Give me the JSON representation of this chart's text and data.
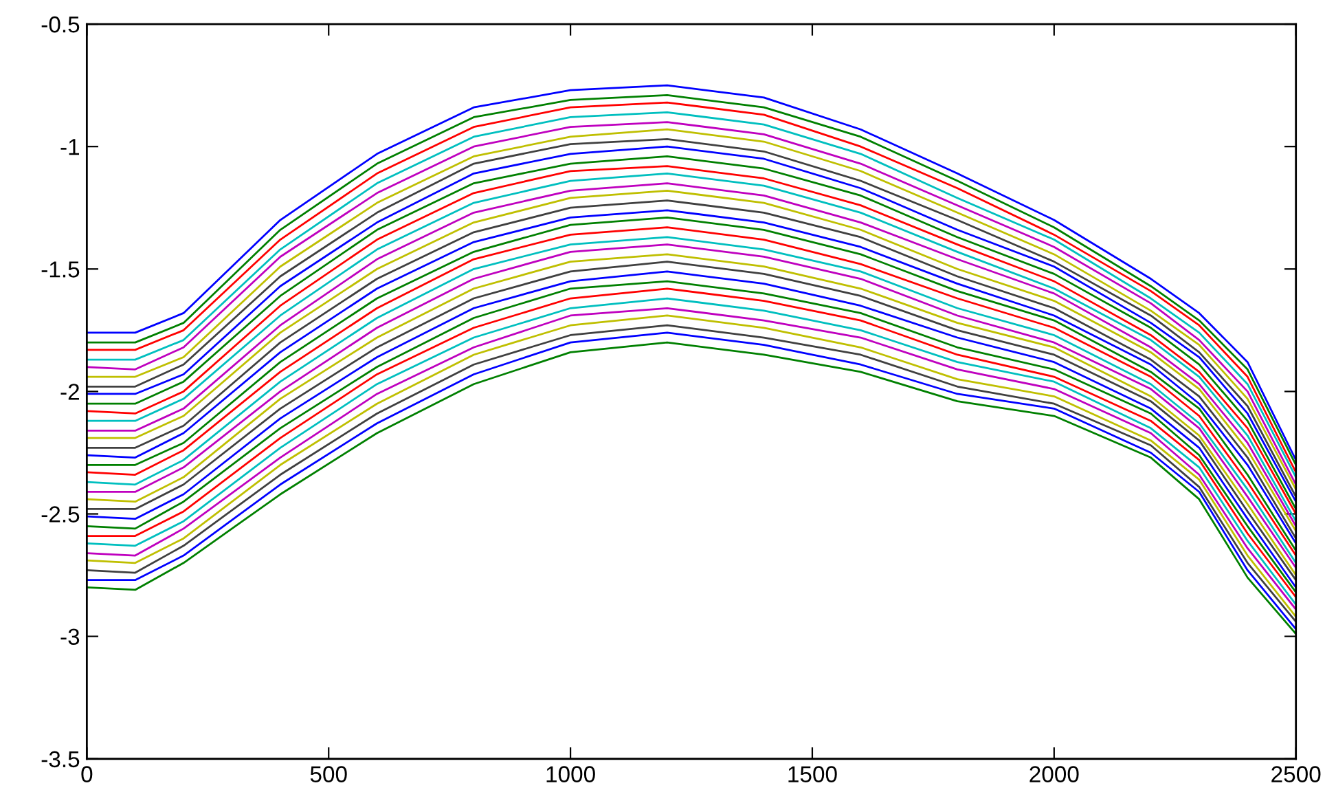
{
  "chart_data": {
    "type": "line",
    "x": [
      0,
      100,
      200,
      400,
      600,
      800,
      1000,
      1200,
      1400,
      1600,
      1800,
      2000,
      2200,
      2300,
      2400,
      2500
    ],
    "xlim": [
      0,
      2500
    ],
    "xticks": [
      0,
      500,
      1000,
      1500,
      2000,
      2500
    ],
    "ylim": [
      -3.5,
      -0.5
    ],
    "yticks": [
      -3.5,
      -3,
      -2.5,
      -2,
      -1.5,
      -1,
      -0.5
    ],
    "grid": false,
    "marker": "none",
    "line_style": "solid",
    "series": [
      {
        "color": "#0000ff",
        "values": [
          -1.76,
          -1.76,
          -1.68,
          -1.3,
          -1.03,
          -0.84,
          -0.77,
          -0.75,
          -0.8,
          -0.93,
          -1.11,
          -1.3,
          -1.54,
          -1.68,
          -1.88,
          -2.28
        ]
      },
      {
        "color": "#008000",
        "values": [
          -1.8,
          -1.8,
          -1.72,
          -1.34,
          -1.07,
          -0.88,
          -0.81,
          -0.79,
          -0.84,
          -0.96,
          -1.14,
          -1.33,
          -1.57,
          -1.71,
          -1.91,
          -2.3
        ]
      },
      {
        "color": "#ff0000",
        "values": [
          -1.83,
          -1.83,
          -1.75,
          -1.38,
          -1.11,
          -0.92,
          -0.84,
          -0.82,
          -0.87,
          -1.0,
          -1.17,
          -1.36,
          -1.59,
          -1.73,
          -1.94,
          -2.33
        ]
      },
      {
        "color": "#00bfbf",
        "values": [
          -1.87,
          -1.87,
          -1.79,
          -1.42,
          -1.15,
          -0.96,
          -0.88,
          -0.86,
          -0.91,
          -1.03,
          -1.21,
          -1.38,
          -1.62,
          -1.76,
          -1.97,
          -2.35
        ]
      },
      {
        "color": "#bf00bf",
        "values": [
          -1.9,
          -1.91,
          -1.82,
          -1.45,
          -1.19,
          -1.0,
          -0.92,
          -0.9,
          -0.95,
          -1.07,
          -1.24,
          -1.41,
          -1.64,
          -1.79,
          -2.0,
          -2.38
        ]
      },
      {
        "color": "#bfbf00",
        "values": [
          -1.94,
          -1.94,
          -1.86,
          -1.49,
          -1.23,
          -1.04,
          -0.96,
          -0.93,
          -0.98,
          -1.1,
          -1.27,
          -1.44,
          -1.67,
          -1.81,
          -2.03,
          -2.4
        ]
      },
      {
        "color": "#404040",
        "values": [
          -1.98,
          -1.98,
          -1.89,
          -1.53,
          -1.27,
          -1.07,
          -0.99,
          -0.97,
          -1.02,
          -1.14,
          -1.3,
          -1.47,
          -1.69,
          -1.84,
          -2.06,
          -2.43
        ]
      },
      {
        "color": "#0000ff",
        "values": [
          -2.01,
          -2.01,
          -1.93,
          -1.57,
          -1.31,
          -1.11,
          -1.03,
          -1.0,
          -1.05,
          -1.17,
          -1.34,
          -1.49,
          -1.72,
          -1.86,
          -2.09,
          -2.45
        ]
      },
      {
        "color": "#008000",
        "values": [
          -2.05,
          -2.05,
          -1.96,
          -1.61,
          -1.34,
          -1.15,
          -1.07,
          -1.04,
          -1.09,
          -1.2,
          -1.37,
          -1.52,
          -1.74,
          -1.89,
          -2.12,
          -2.48
        ]
      },
      {
        "color": "#ff0000",
        "values": [
          -2.08,
          -2.09,
          -2.0,
          -1.65,
          -1.38,
          -1.19,
          -1.1,
          -1.08,
          -1.13,
          -1.24,
          -1.4,
          -1.55,
          -1.77,
          -1.92,
          -2.15,
          -2.5
        ]
      },
      {
        "color": "#00bfbf",
        "values": [
          -2.12,
          -2.12,
          -2.03,
          -1.69,
          -1.42,
          -1.23,
          -1.14,
          -1.11,
          -1.16,
          -1.27,
          -1.43,
          -1.58,
          -1.79,
          -1.94,
          -2.18,
          -2.53
        ]
      },
      {
        "color": "#bf00bf",
        "values": [
          -2.16,
          -2.16,
          -2.07,
          -1.73,
          -1.46,
          -1.27,
          -1.18,
          -1.15,
          -1.2,
          -1.31,
          -1.46,
          -1.6,
          -1.82,
          -1.97,
          -2.21,
          -2.55
        ]
      },
      {
        "color": "#bfbf00",
        "values": [
          -2.19,
          -2.19,
          -2.1,
          -1.76,
          -1.5,
          -1.31,
          -1.21,
          -1.18,
          -1.23,
          -1.34,
          -1.5,
          -1.63,
          -1.84,
          -1.99,
          -2.24,
          -2.57
        ]
      },
      {
        "color": "#404040",
        "values": [
          -2.23,
          -2.23,
          -2.14,
          -1.8,
          -1.54,
          -1.35,
          -1.25,
          -1.22,
          -1.27,
          -1.37,
          -1.53,
          -1.66,
          -1.87,
          -2.02,
          -2.27,
          -2.6
        ]
      },
      {
        "color": "#0000ff",
        "values": [
          -2.26,
          -2.27,
          -2.17,
          -1.84,
          -1.58,
          -1.39,
          -1.29,
          -1.26,
          -1.31,
          -1.41,
          -1.56,
          -1.69,
          -1.89,
          -2.05,
          -2.3,
          -2.62
        ]
      },
      {
        "color": "#008000",
        "values": [
          -2.3,
          -2.3,
          -2.21,
          -1.88,
          -1.62,
          -1.43,
          -1.32,
          -1.29,
          -1.34,
          -1.44,
          -1.59,
          -1.71,
          -1.92,
          -2.07,
          -2.34,
          -2.65
        ]
      },
      {
        "color": "#ff0000",
        "values": [
          -2.33,
          -2.34,
          -2.24,
          -1.92,
          -1.66,
          -1.46,
          -1.36,
          -1.33,
          -1.38,
          -1.48,
          -1.62,
          -1.74,
          -1.94,
          -2.1,
          -2.37,
          -2.67
        ]
      },
      {
        "color": "#00bfbf",
        "values": [
          -2.37,
          -2.38,
          -2.28,
          -1.96,
          -1.7,
          -1.5,
          -1.4,
          -1.37,
          -1.42,
          -1.51,
          -1.66,
          -1.77,
          -1.97,
          -2.13,
          -2.4,
          -2.7
        ]
      },
      {
        "color": "#bf00bf",
        "values": [
          -2.41,
          -2.41,
          -2.31,
          -2.0,
          -1.74,
          -1.54,
          -1.43,
          -1.4,
          -1.45,
          -1.54,
          -1.69,
          -1.8,
          -1.99,
          -2.15,
          -2.43,
          -2.72
        ]
      },
      {
        "color": "#bfbf00",
        "values": [
          -2.44,
          -2.45,
          -2.35,
          -2.03,
          -1.78,
          -1.58,
          -1.47,
          -1.44,
          -1.49,
          -1.58,
          -1.72,
          -1.82,
          -2.02,
          -2.18,
          -2.46,
          -2.75
        ]
      },
      {
        "color": "#404040",
        "values": [
          -2.48,
          -2.48,
          -2.38,
          -2.07,
          -1.82,
          -1.62,
          -1.51,
          -1.47,
          -1.52,
          -1.61,
          -1.75,
          -1.85,
          -2.04,
          -2.2,
          -2.49,
          -2.77
        ]
      },
      {
        "color": "#0000ff",
        "values": [
          -2.51,
          -2.52,
          -2.42,
          -2.11,
          -1.86,
          -1.66,
          -1.55,
          -1.51,
          -1.56,
          -1.65,
          -1.78,
          -1.88,
          -2.07,
          -2.23,
          -2.52,
          -2.8
        ]
      },
      {
        "color": "#008000",
        "values": [
          -2.55,
          -2.56,
          -2.45,
          -2.15,
          -1.9,
          -1.7,
          -1.58,
          -1.55,
          -1.6,
          -1.68,
          -1.82,
          -1.91,
          -2.09,
          -2.26,
          -2.55,
          -2.82
        ]
      },
      {
        "color": "#ff0000",
        "values": [
          -2.59,
          -2.59,
          -2.49,
          -2.19,
          -1.93,
          -1.74,
          -1.62,
          -1.58,
          -1.63,
          -1.71,
          -1.85,
          -1.94,
          -2.12,
          -2.28,
          -2.58,
          -2.84
        ]
      },
      {
        "color": "#00bfbf",
        "values": [
          -2.62,
          -2.63,
          -2.53,
          -2.23,
          -1.97,
          -1.78,
          -1.66,
          -1.62,
          -1.67,
          -1.75,
          -1.88,
          -1.96,
          -2.15,
          -2.31,
          -2.61,
          -2.87
        ]
      },
      {
        "color": "#bf00bf",
        "values": [
          -2.66,
          -2.67,
          -2.56,
          -2.27,
          -2.01,
          -1.82,
          -1.69,
          -1.66,
          -1.71,
          -1.78,
          -1.91,
          -1.99,
          -2.17,
          -2.34,
          -2.64,
          -2.89
        ]
      },
      {
        "color": "#bfbf00",
        "values": [
          -2.69,
          -2.7,
          -2.6,
          -2.3,
          -2.05,
          -1.85,
          -1.73,
          -1.69,
          -1.74,
          -1.82,
          -1.95,
          -2.02,
          -2.2,
          -2.36,
          -2.67,
          -2.92
        ]
      },
      {
        "color": "#404040",
        "values": [
          -2.73,
          -2.74,
          -2.63,
          -2.34,
          -2.09,
          -1.89,
          -1.77,
          -1.73,
          -1.78,
          -1.85,
          -1.98,
          -2.05,
          -2.22,
          -2.39,
          -2.7,
          -2.94
        ]
      },
      {
        "color": "#0000ff",
        "values": [
          -2.77,
          -2.77,
          -2.67,
          -2.38,
          -2.13,
          -1.93,
          -1.8,
          -1.76,
          -1.81,
          -1.89,
          -2.01,
          -2.07,
          -2.25,
          -2.41,
          -2.73,
          -2.97
        ]
      },
      {
        "color": "#008000",
        "values": [
          -2.8,
          -2.81,
          -2.7,
          -2.42,
          -2.17,
          -1.97,
          -1.84,
          -1.8,
          -1.85,
          -1.92,
          -2.04,
          -2.1,
          -2.27,
          -2.44,
          -2.76,
          -2.99
        ]
      }
    ]
  }
}
